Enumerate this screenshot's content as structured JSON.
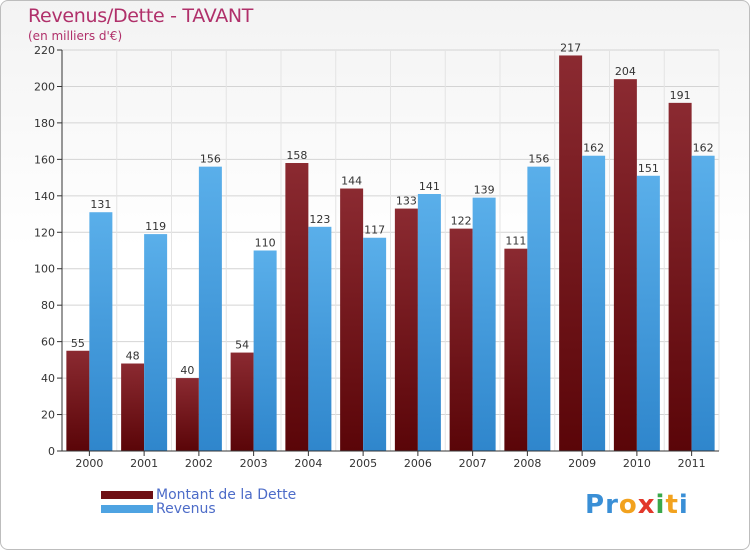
{
  "header": {
    "title": "Revenus/Dette - TAVANT",
    "subtitle": "(en milliers d'€)"
  },
  "colors": {
    "dette": "#6e0f14",
    "revenus": "#4ea3e2",
    "title": "#b0306a",
    "legend_text": "#4d6cc8"
  },
  "chart_data": {
    "type": "bar",
    "title": "Revenus/Dette - TAVANT",
    "subtitle": "(en milliers d'€)",
    "categories": [
      "2000",
      "2001",
      "2002",
      "2003",
      "2004",
      "2005",
      "2006",
      "2007",
      "2008",
      "2009",
      "2010",
      "2011"
    ],
    "series": [
      {
        "name": "Montant de la Dette",
        "color": "#6e0f14",
        "values": [
          55,
          48,
          40,
          54,
          158,
          144,
          133,
          122,
          111,
          217,
          204,
          191
        ]
      },
      {
        "name": "Revenus",
        "color": "#4ea3e2",
        "values": [
          131,
          119,
          156,
          110,
          123,
          117,
          141,
          139,
          156,
          162,
          151,
          162
        ]
      }
    ],
    "ylim": [
      0,
      220
    ],
    "yticks": [
      0,
      20,
      40,
      60,
      80,
      100,
      120,
      140,
      160,
      180,
      200,
      220
    ],
    "grid": true,
    "legend": "bottom-left"
  },
  "legend": {
    "items": [
      {
        "label": "Montant de la Dette",
        "color": "#6e0f14"
      },
      {
        "label": "Revenus",
        "color": "#4ea3e2"
      }
    ]
  },
  "logo": {
    "letters": [
      {
        "ch": "P",
        "color": "#3a8fd6"
      },
      {
        "ch": "r",
        "color": "#3a8fd6"
      },
      {
        "ch": "o",
        "color": "#f2a21e"
      },
      {
        "ch": "x",
        "color": "#e2372a"
      },
      {
        "ch": "i",
        "color": "#3aa84a"
      },
      {
        "ch": "t",
        "color": "#f2a21e"
      },
      {
        "ch": "i",
        "color": "#3a8fd6"
      }
    ]
  }
}
